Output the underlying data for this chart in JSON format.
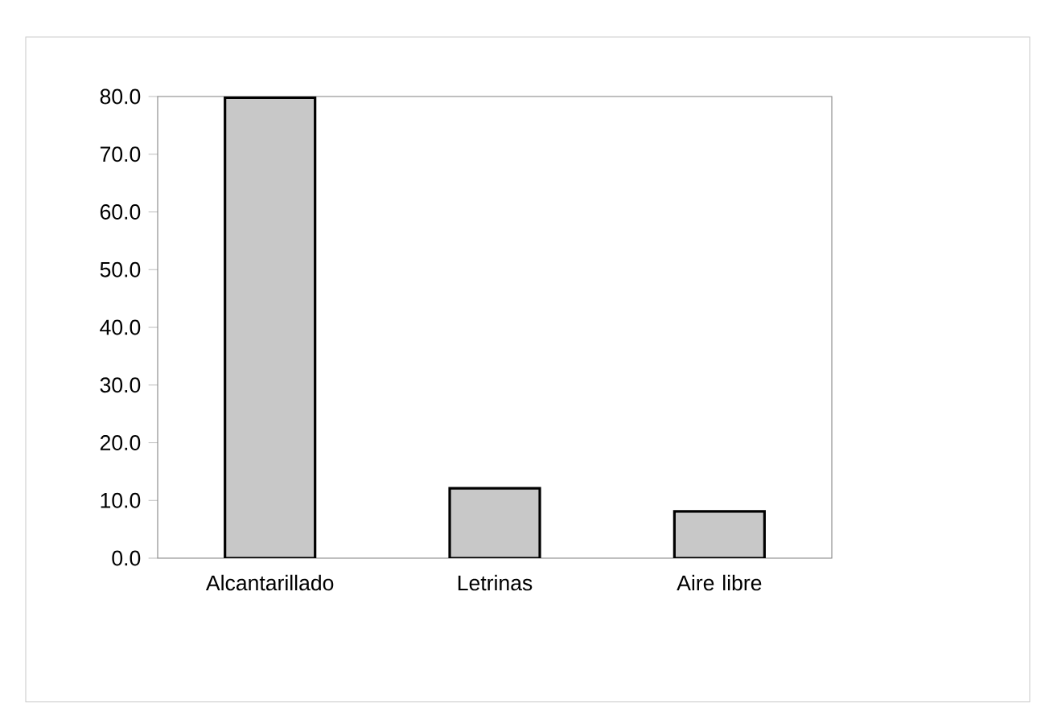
{
  "chart_data": {
    "type": "bar",
    "categories": [
      "Alcantarillado",
      "Letrinas",
      "Aire libre"
    ],
    "values": [
      79.8,
      12.1,
      8.1
    ],
    "color": "#c8c8c8",
    "ylim": [
      0,
      80
    ],
    "yticks": [
      {
        "value": 0,
        "label": "0.0"
      },
      {
        "value": 10,
        "label": "10.0"
      },
      {
        "value": 20,
        "label": "20.0"
      },
      {
        "value": 30,
        "label": "30.0"
      },
      {
        "value": 40,
        "label": "40.0"
      },
      {
        "value": 50,
        "label": "50.0"
      },
      {
        "value": 60,
        "label": "60.0"
      },
      {
        "value": 70,
        "label": "70.0"
      },
      {
        "value": 80,
        "label": "80.0"
      }
    ]
  }
}
